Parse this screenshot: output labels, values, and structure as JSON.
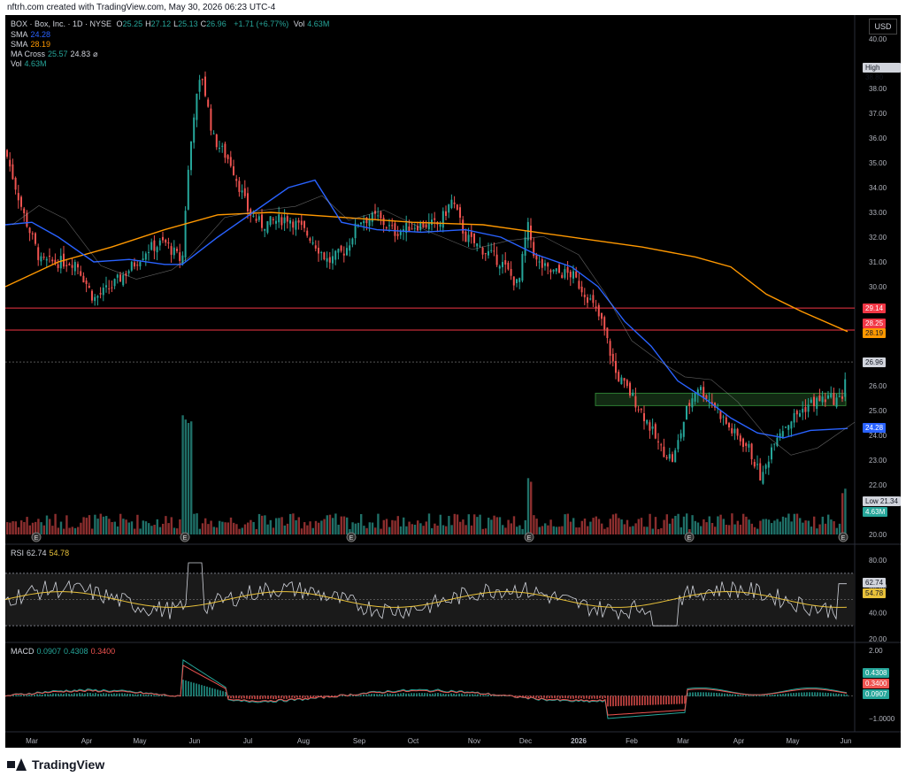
{
  "header": {
    "created_text": "nftrh.com created with TradingView.com, May 30, 2026 06:23 UTC-4"
  },
  "legend": {
    "symbol": "BOX · Box, Inc. · 1D · NYSE",
    "ohlc": [
      {
        "label": "O",
        "value": "25.25"
      },
      {
        "label": "H",
        "value": "27.12"
      },
      {
        "label": "L",
        "value": "25.13"
      },
      {
        "label": "C",
        "value": "26.96"
      }
    ],
    "change": "+1.71 (+6.77%)",
    "vol_label": "Vol",
    "vol_value": "4.63M",
    "sma1_label": "SMA",
    "sma1_value": "24.28",
    "sma2_label": "SMA",
    "sma2_value": "28.19",
    "macross_label": "MA Cross",
    "macross_v1": "25.57",
    "macross_v2": "24.83",
    "macross_symbol": "⌀",
    "vol2_label": "Vol",
    "vol2_value": "4.63M"
  },
  "currency": "USD",
  "price_axis": [
    "40.00",
    "38.80",
    "37.00",
    "36.00",
    "35.00",
    "34.00",
    "33.00",
    "32.00",
    "31.00",
    "30.00",
    "29.14",
    "28.25",
    "28.19",
    "26.96",
    "26.00",
    "25.00",
    "24.28",
    "24.00",
    "23.00",
    "22.00",
    "21.34",
    "20.00"
  ],
  "price_ticks": [
    40,
    38,
    37,
    36,
    35,
    34,
    33,
    32,
    31,
    30,
    29,
    28,
    27,
    26,
    25,
    24,
    23,
    22,
    21,
    20
  ],
  "tags": {
    "high_label": "High",
    "high_value": "38.80",
    "low_label": "Low",
    "low_value": "21.34",
    "level1": "29.14",
    "level2": "28.25",
    "sma200": "28.19",
    "last": "26.96",
    "sma50": "24.28",
    "vol": "4.63M"
  },
  "rsi": {
    "label": "RSI",
    "v1": "62.74",
    "v2": "54.78",
    "axis": [
      "80.00",
      "60.00",
      "40.00",
      "20.00"
    ]
  },
  "macd": {
    "label": "MACD",
    "v1": "0.0907",
    "v2": "0.4308",
    "v3": "0.3400",
    "axis": [
      "2.00",
      "0.4308",
      "0.3400",
      "0.0907",
      "−1.0000"
    ]
  },
  "time_axis": [
    "Mar",
    "Apr",
    "May",
    "Jun",
    "Jul",
    "Aug",
    "Sep",
    "Oct",
    "Nov",
    "Dec",
    "2026",
    "Feb",
    "Mar",
    "Apr",
    "May",
    "Jun"
  ],
  "colors": {
    "up": "#26a69a",
    "down": "#ef5350",
    "sma50": "#2962ff",
    "sma200": "#ff9800",
    "rsi": "#d1d4dc",
    "rsi_ma": "#e8c13a",
    "macd": "#26a69a",
    "signal": "#ef5350",
    "hline": "#f23645",
    "zone": "#1e4620"
  },
  "footer": {
    "brand": "TradingView"
  }
}
